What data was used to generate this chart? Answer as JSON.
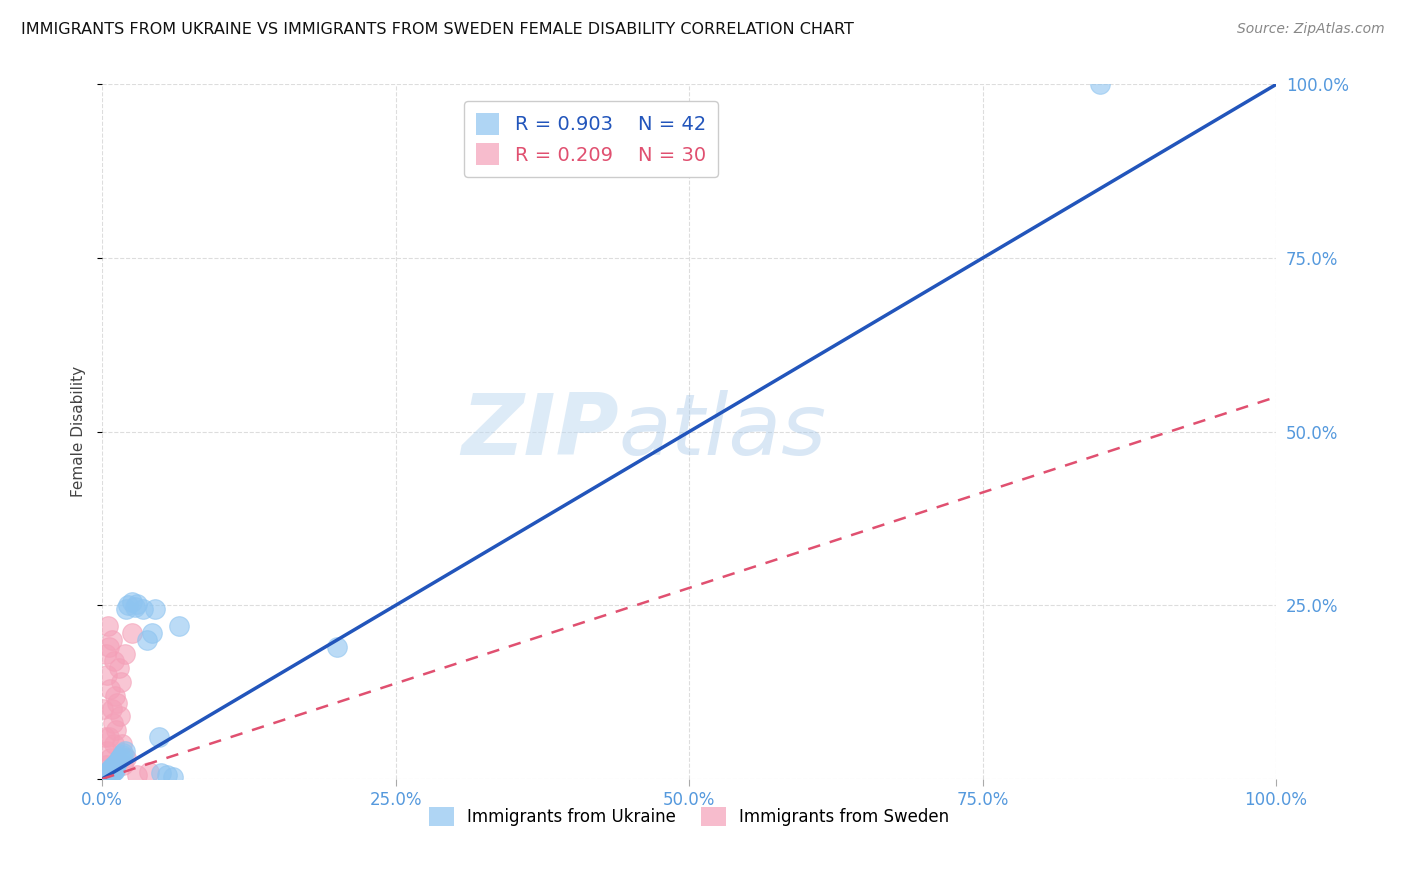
{
  "title": "IMMIGRANTS FROM UKRAINE VS IMMIGRANTS FROM SWEDEN FEMALE DISABILITY CORRELATION CHART",
  "source": "Source: ZipAtlas.com",
  "ylabel": "Female Disability",
  "xlim": [
    0.0,
    1.0
  ],
  "ylim": [
    0.0,
    1.0
  ],
  "x_ticks": [
    0.0,
    0.25,
    0.5,
    0.75,
    1.0
  ],
  "y_ticks": [
    0.0,
    0.25,
    0.5,
    0.75,
    1.0
  ],
  "x_tick_labels": [
    "0.0%",
    "25.0%",
    "50.0%",
    "75.0%",
    "100.0%"
  ],
  "right_y_tick_labels": [
    "",
    "25.0%",
    "50.0%",
    "75.0%",
    "100.0%"
  ],
  "ukraine_color": "#8EC4F0",
  "sweden_color": "#F4A0B8",
  "ukraine_line_color": "#2255BB",
  "sweden_line_color": "#E05070",
  "ukraine_R": 0.903,
  "ukraine_N": 42,
  "sweden_R": 0.209,
  "sweden_N": 30,
  "watermark_zip": "ZIP",
  "watermark_atlas": "atlas",
  "background_color": "#FFFFFF",
  "grid_color": "#DDDDDD",
  "ukraine_x": [
    0.002,
    0.003,
    0.004,
    0.004,
    0.005,
    0.005,
    0.006,
    0.006,
    0.007,
    0.007,
    0.008,
    0.008,
    0.009,
    0.009,
    0.01,
    0.01,
    0.011,
    0.011,
    0.012,
    0.013,
    0.014,
    0.015,
    0.016,
    0.017,
    0.018,
    0.019,
    0.02,
    0.022,
    0.025,
    0.028,
    0.03,
    0.035,
    0.038,
    0.042,
    0.045,
    0.048,
    0.05,
    0.055,
    0.06,
    0.065,
    0.2,
    0.85
  ],
  "ukraine_y": [
    0.004,
    0.007,
    0.005,
    0.009,
    0.006,
    0.01,
    0.008,
    0.012,
    0.009,
    0.014,
    0.01,
    0.016,
    0.012,
    0.018,
    0.011,
    0.015,
    0.013,
    0.02,
    0.022,
    0.025,
    0.028,
    0.03,
    0.032,
    0.035,
    0.038,
    0.04,
    0.245,
    0.25,
    0.255,
    0.248,
    0.252,
    0.245,
    0.2,
    0.21,
    0.245,
    0.06,
    0.008,
    0.005,
    0.003,
    0.22,
    0.19,
    1.0
  ],
  "sweden_x": [
    0.001,
    0.002,
    0.003,
    0.003,
    0.004,
    0.004,
    0.005,
    0.005,
    0.006,
    0.006,
    0.007,
    0.007,
    0.008,
    0.008,
    0.009,
    0.01,
    0.01,
    0.011,
    0.012,
    0.013,
    0.014,
    0.015,
    0.016,
    0.017,
    0.018,
    0.019,
    0.02,
    0.025,
    0.03,
    0.04
  ],
  "sweden_y": [
    0.1,
    0.06,
    0.18,
    0.02,
    0.15,
    0.04,
    0.22,
    0.01,
    0.19,
    0.06,
    0.13,
    0.03,
    0.1,
    0.2,
    0.08,
    0.17,
    0.05,
    0.12,
    0.07,
    0.11,
    0.16,
    0.09,
    0.14,
    0.05,
    0.02,
    0.18,
    0.03,
    0.21,
    0.005,
    0.01
  ],
  "ukraine_line_x": [
    0.0,
    1.0
  ],
  "ukraine_line_y": [
    0.0,
    1.0
  ],
  "sweden_line_x": [
    0.0,
    1.0
  ],
  "sweden_line_y": [
    0.0,
    0.55
  ]
}
